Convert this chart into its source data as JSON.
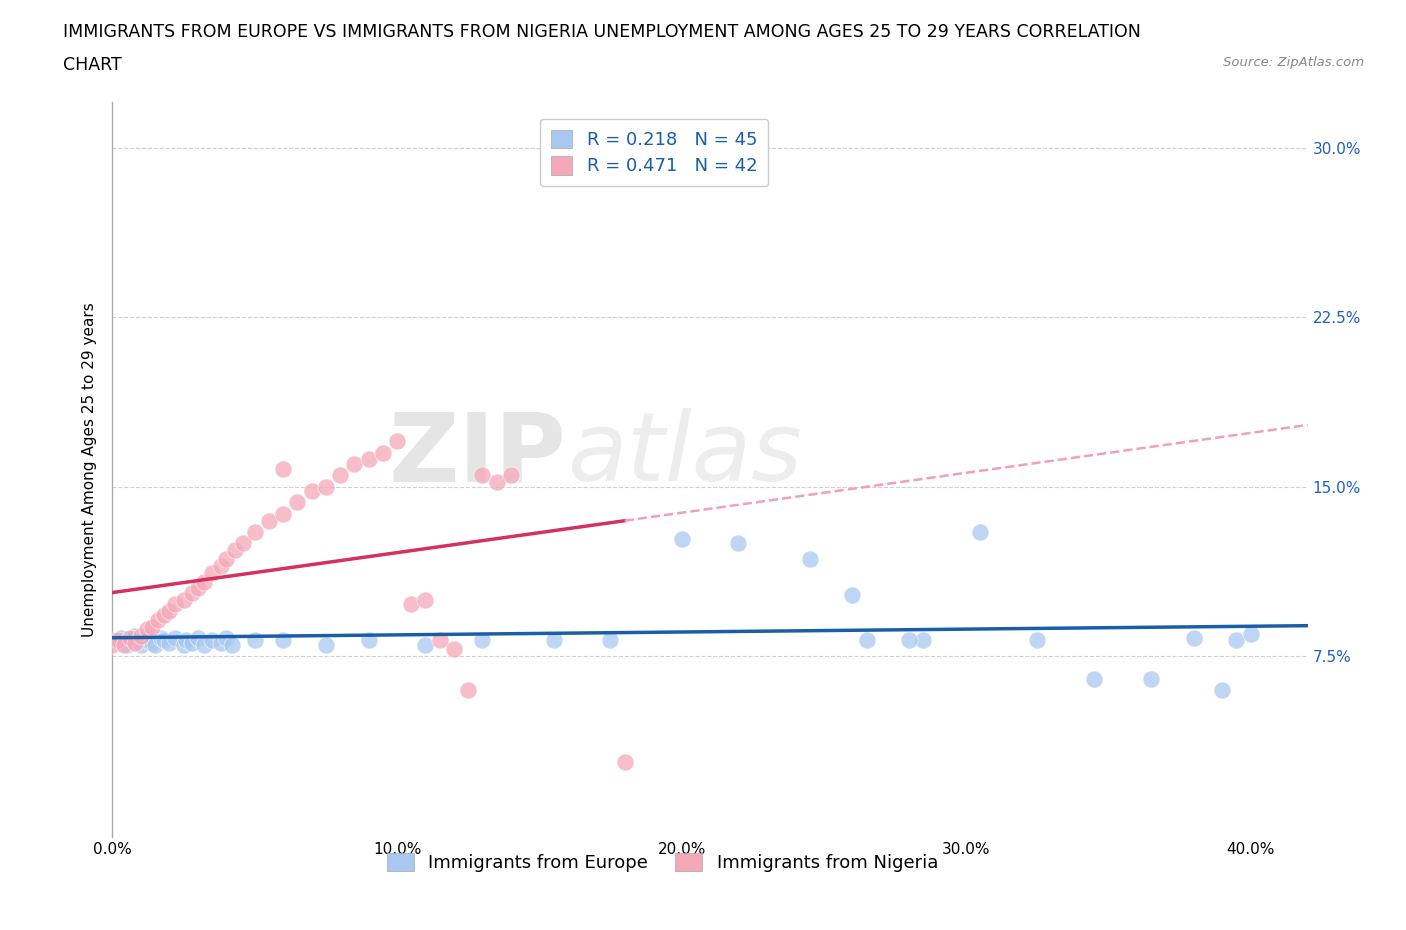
{
  "title_line1": "IMMIGRANTS FROM EUROPE VS IMMIGRANTS FROM NIGERIA UNEMPLOYMENT AMONG AGES 25 TO 29 YEARS CORRELATION",
  "title_line2": "CHART",
  "source_text": "Source: ZipAtlas.com",
  "ylabel": "Unemployment Among Ages 25 to 29 years",
  "xlim": [
    0.0,
    0.42
  ],
  "ylim": [
    -0.005,
    0.32
  ],
  "europe_R": 0.218,
  "europe_N": 45,
  "nigeria_R": 0.471,
  "nigeria_N": 42,
  "europe_color": "#a8c8f0",
  "nigeria_color": "#f5a8b8",
  "europe_line_color": "#1a5ea8",
  "nigeria_line_color": "#d43060",
  "nigeria_dashed_color": "#f0a0b8",
  "watermark_zip": "ZIP",
  "watermark_atlas": "atlas",
  "background_color": "#ffffff",
  "grid_color": "#d0d0d0",
  "title_fontsize": 12.5,
  "axis_label_fontsize": 11,
  "tick_fontsize": 11,
  "legend_fontsize": 13,
  "europe_x": [
    0.0,
    0.002,
    0.004,
    0.006,
    0.008,
    0.01,
    0.012,
    0.014,
    0.016,
    0.018,
    0.02,
    0.022,
    0.024,
    0.026,
    0.028,
    0.03,
    0.032,
    0.034,
    0.036,
    0.038,
    0.04,
    0.045,
    0.05,
    0.055,
    0.065,
    0.08,
    0.09,
    0.1,
    0.12,
    0.14,
    0.16,
    0.185,
    0.2,
    0.22,
    0.25,
    0.27,
    0.29,
    0.31,
    0.33,
    0.34,
    0.36,
    0.37,
    0.39,
    0.28,
    0.4
  ],
  "europe_y": [
    0.082,
    0.084,
    0.078,
    0.08,
    0.083,
    0.079,
    0.082,
    0.08,
    0.081,
    0.083,
    0.08,
    0.082,
    0.083,
    0.081,
    0.079,
    0.083,
    0.08,
    0.081,
    0.079,
    0.083,
    0.082,
    0.08,
    0.083,
    0.081,
    0.079,
    0.083,
    0.08,
    0.082,
    0.079,
    0.083,
    0.085,
    0.083,
    0.128,
    0.127,
    0.12,
    0.083,
    0.128,
    0.082,
    0.065,
    0.065,
    0.082,
    0.065,
    0.06,
    0.1,
    0.082
  ],
  "nigeria_x": [
    0.0,
    0.002,
    0.004,
    0.006,
    0.008,
    0.01,
    0.012,
    0.014,
    0.016,
    0.018,
    0.02,
    0.022,
    0.024,
    0.026,
    0.028,
    0.03,
    0.032,
    0.034,
    0.036,
    0.038,
    0.04,
    0.042,
    0.046,
    0.05,
    0.054,
    0.058,
    0.062,
    0.066,
    0.07,
    0.075,
    0.08,
    0.085,
    0.09,
    0.095,
    0.1,
    0.105,
    0.11,
    0.115,
    0.12,
    0.13,
    0.14,
    0.18
  ],
  "nigeria_y": [
    0.078,
    0.08,
    0.078,
    0.082,
    0.08,
    0.082,
    0.085,
    0.083,
    0.087,
    0.086,
    0.09,
    0.092,
    0.096,
    0.095,
    0.1,
    0.098,
    0.105,
    0.108,
    0.11,
    0.112,
    0.118,
    0.12,
    0.125,
    0.13,
    0.132,
    0.135,
    0.14,
    0.142,
    0.148,
    0.15,
    0.155,
    0.158,
    0.162,
    0.165,
    0.17,
    0.1,
    0.105,
    0.082,
    0.078,
    0.06,
    0.155,
    0.028
  ]
}
